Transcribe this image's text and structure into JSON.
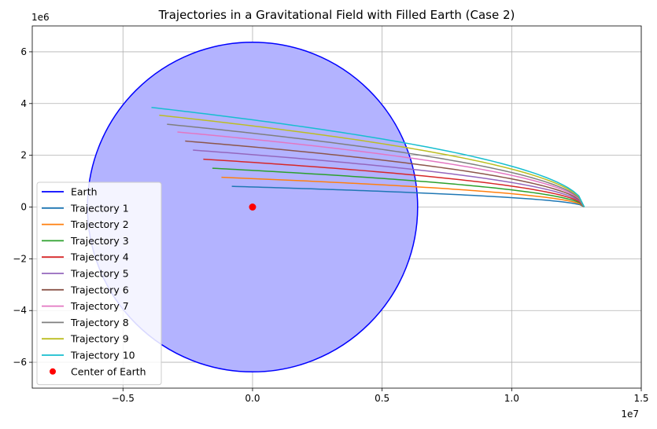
{
  "chart_data": {
    "type": "line",
    "title": "Trajectories in a Gravitational Field with Filled Earth (Case 2)",
    "xlabel": "",
    "ylabel": "",
    "xlim": [
      -8500000.0,
      15000000.0
    ],
    "ylim": [
      -7000000.0,
      7000000.0
    ],
    "x_offset_label": "1e7",
    "y_offset_label": "1e6",
    "x_ticks": [
      -0.5,
      0.0,
      0.5,
      1.0,
      1.5
    ],
    "x_tick_labels": [
      "−0.5",
      "0.0",
      "0.5",
      "1.0",
      "1.5"
    ],
    "y_ticks": [
      -6,
      -4,
      -2,
      0,
      2,
      4,
      6
    ],
    "y_tick_labels": [
      "−6",
      "−4",
      "−2",
      "0",
      "2",
      "4",
      "6"
    ],
    "grid": true,
    "legend_position": "lower-left",
    "earth": {
      "name": "Earth",
      "radius": 6371000.0,
      "edge_color": "#0000ff",
      "fill_color": "#b3b3ff"
    },
    "center": {
      "name": "Center of Earth",
      "x": 0,
      "y": 0,
      "color": "#ff0000"
    },
    "start_x": 12800000.0,
    "series": [
      {
        "name": "Trajectory 1",
        "color": "#1f77b4",
        "end_x": -800000.0,
        "end_y": 800000.0
      },
      {
        "name": "Trajectory 2",
        "color": "#ff7f0e",
        "end_x": -1200000.0,
        "end_y": 1150000.0
      },
      {
        "name": "Trajectory 3",
        "color": "#2ca02c",
        "end_x": -1550000.0,
        "end_y": 1500000.0
      },
      {
        "name": "Trajectory 4",
        "color": "#d62728",
        "end_x": -1900000.0,
        "end_y": 1850000.0
      },
      {
        "name": "Trajectory 5",
        "color": "#9467bd",
        "end_x": -2300000.0,
        "end_y": 2200000.0
      },
      {
        "name": "Trajectory 6",
        "color": "#8c564b",
        "end_x": -2600000.0,
        "end_y": 2550000.0
      },
      {
        "name": "Trajectory 7",
        "color": "#e377c2",
        "end_x": -2900000.0,
        "end_y": 2900000.0
      },
      {
        "name": "Trajectory 8",
        "color": "#7f7f7f",
        "end_x": -3300000.0,
        "end_y": 3200000.0
      },
      {
        "name": "Trajectory 9",
        "color": "#bcbd22",
        "end_x": -3600000.0,
        "end_y": 3550000.0
      },
      {
        "name": "Trajectory 10",
        "color": "#17becf",
        "end_x": -3900000.0,
        "end_y": 3850000.0
      }
    ]
  }
}
